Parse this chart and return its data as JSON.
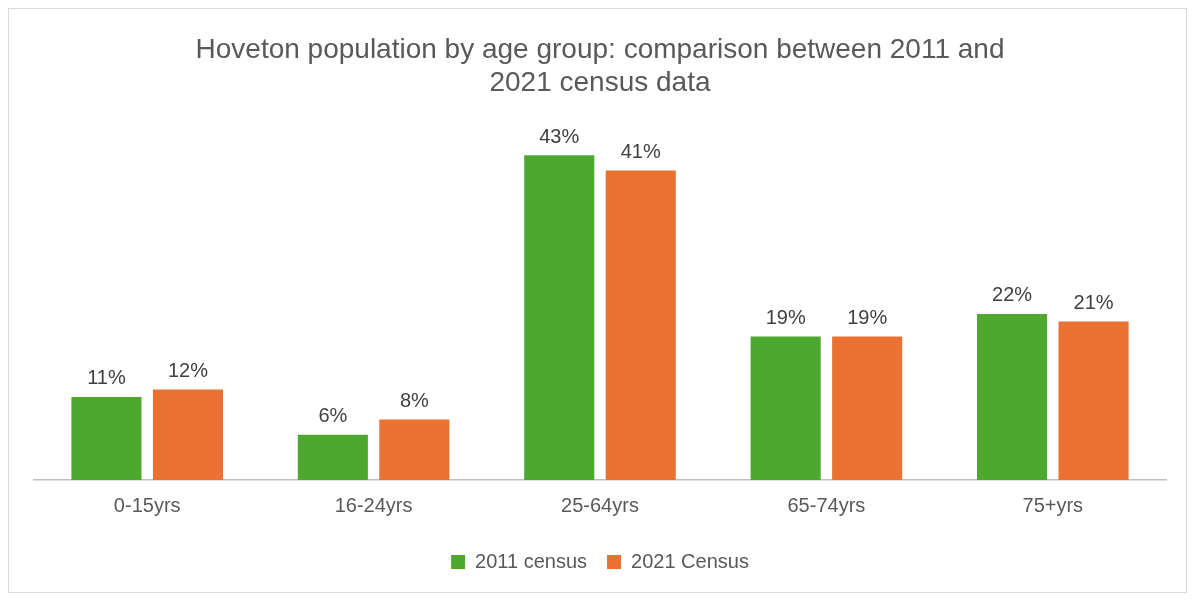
{
  "chart_data": {
    "type": "bar",
    "title": "Hoveton population by age group: comparison between 2011 and 2021 census data",
    "categories": [
      "0-15yrs",
      "16-24yrs",
      "25-64yrs",
      "65-74yrs",
      "75+yrs"
    ],
    "series": [
      {
        "name": "2011 census",
        "color": "#4ea72e",
        "values": [
          11,
          6,
          43,
          19,
          22
        ],
        "value_labels": [
          "11%",
          "6%",
          "43%",
          "19%",
          "22%"
        ]
      },
      {
        "name": "2021 Census",
        "color": "#e97132",
        "values": [
          12,
          8,
          41,
          19,
          21
        ],
        "value_labels": [
          "12%",
          "8%",
          "41%",
          "19%",
          "21%"
        ]
      }
    ],
    "legend": "bottom",
    "grid": false,
    "tick_labels": "x"
  }
}
